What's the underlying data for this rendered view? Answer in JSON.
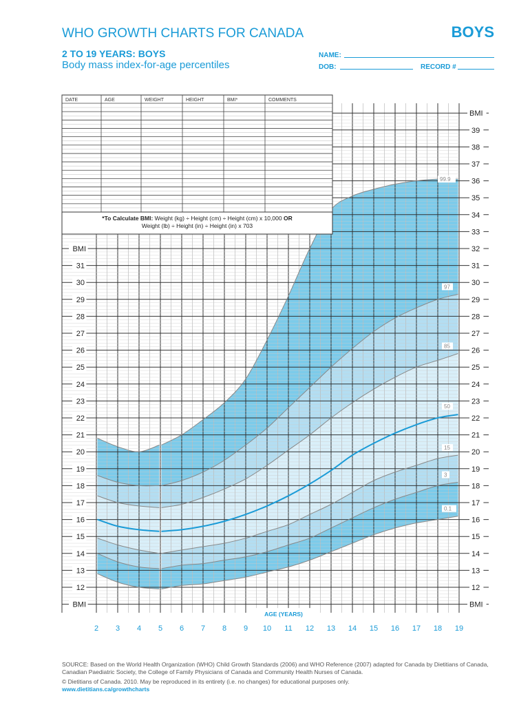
{
  "header": {
    "title": "WHO GROWTH CHARTS FOR CANADA",
    "sex": "BOYS",
    "subtitle": "2 TO 19 YEARS: BOYS",
    "description": "Body mass index-for-age percentiles"
  },
  "form": {
    "name_label": "NAME:",
    "dob_label": "DOB:",
    "record_label": "RECORD #"
  },
  "table": {
    "columns": [
      "DATE",
      "AGE",
      "WEIGHT",
      "HEIGHT",
      "BMI*",
      "COMMENTS"
    ],
    "row_count": 13
  },
  "formula": {
    "bold": "*To Calculate BMI:",
    "line1": "Weight (kg) ÷ Height (cm) ÷ Height (cm) x 10,000",
    "or": "OR",
    "line2": "Weight (lb) ÷ Height (in) ÷ Height (in) x 703"
  },
  "footer": {
    "source": "SOURCE: Based on the World Health Organization (WHO) Child Growth Standards (2006) and WHO Reference (2007) adapted for Canada by Dietitians of Canada,",
    "source2": "Canadian Paediatric Society, the College of Family Physicians of Canada and Community Health Nurses of Canada.",
    "copyright": "© Dietitians of Canada. 2010. May be reproduced in its entirety (i.e. no changes) for educational purposes only.",
    "url": "www.dietitians.ca/growthcharts"
  },
  "colors": {
    "accent": "#1a9bd7",
    "outer_band": "#7ccbea",
    "mid_band": "#b3def2",
    "inner_band": "#d9eff9",
    "median": "#1a9bd7"
  },
  "chart_data": {
    "type": "line",
    "title": "Body mass index-for-age percentiles",
    "xlabel": "AGE (YEARS)",
    "ylabel": "BMI",
    "xlim": [
      2,
      19
    ],
    "ylim": [
      11,
      40
    ],
    "x_ticks": [
      2,
      3,
      4,
      5,
      6,
      7,
      8,
      9,
      10,
      11,
      12,
      13,
      14,
      15,
      16,
      17,
      18,
      19
    ],
    "y_ticks_left": [
      31,
      30,
      29,
      28,
      27,
      26,
      25,
      24,
      23,
      22,
      21,
      20,
      19,
      18,
      17,
      16,
      15,
      14,
      13,
      12
    ],
    "y_ticks_right": [
      39,
      38,
      37,
      36,
      35,
      34,
      33,
      32,
      31,
      30,
      29,
      28,
      27,
      26,
      25,
      24,
      23,
      22,
      21,
      20,
      19,
      18,
      17,
      16,
      15,
      14,
      13,
      12
    ],
    "grid": true,
    "x": [
      2,
      3,
      4,
      5,
      6,
      7,
      8,
      9,
      10,
      11,
      12,
      13,
      14,
      15,
      16,
      17,
      18,
      19
    ],
    "series": [
      {
        "name": "99.9",
        "values": [
          20.8,
          20.3,
          20.0,
          20.4,
          21.0,
          21.9,
          22.9,
          24.3,
          26.6,
          29.2,
          32.0,
          34.3,
          35.1,
          35.5,
          35.8,
          36.0,
          36.1,
          36.1
        ]
      },
      {
        "name": "97",
        "values": [
          18.6,
          18.2,
          18.0,
          18.0,
          18.3,
          18.8,
          19.5,
          20.4,
          21.4,
          22.6,
          23.8,
          25.0,
          26.1,
          27.1,
          27.9,
          28.5,
          29.0,
          29.3
        ]
      },
      {
        "name": "85",
        "values": [
          17.4,
          17.0,
          16.8,
          16.7,
          16.9,
          17.3,
          17.8,
          18.4,
          19.2,
          20.1,
          21.0,
          22.0,
          22.9,
          23.7,
          24.4,
          25.0,
          25.4,
          25.8
        ]
      },
      {
        "name": "50",
        "values": [
          16.0,
          15.6,
          15.4,
          15.3,
          15.4,
          15.6,
          15.9,
          16.3,
          16.8,
          17.4,
          18.1,
          18.9,
          19.8,
          20.5,
          21.1,
          21.6,
          22.0,
          22.2
        ]
      },
      {
        "name": "15",
        "values": [
          14.9,
          14.5,
          14.2,
          14.0,
          14.2,
          14.4,
          14.6,
          14.9,
          15.3,
          15.7,
          16.3,
          16.9,
          17.6,
          18.3,
          18.8,
          19.2,
          19.6,
          19.8
        ]
      },
      {
        "name": "3",
        "values": [
          14.0,
          13.5,
          13.2,
          13.1,
          13.3,
          13.4,
          13.6,
          13.8,
          14.1,
          14.5,
          14.9,
          15.5,
          16.1,
          16.7,
          17.2,
          17.6,
          18.0,
          18.2
        ]
      },
      {
        "name": "0.1",
        "values": [
          12.8,
          12.3,
          12.0,
          11.9,
          12.1,
          12.2,
          12.4,
          12.6,
          12.9,
          13.2,
          13.6,
          14.1,
          14.6,
          15.1,
          15.5,
          15.8,
          16.0,
          16.2
        ]
      }
    ]
  }
}
